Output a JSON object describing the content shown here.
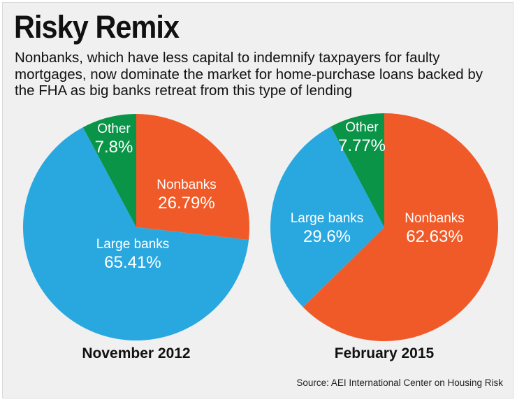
{
  "title": "Risky Remix",
  "subtitle": "Nonbanks, which have less capital to indemnify taxpayers for faulty mortgages, now dominate the market for home-purchase loans backed by the FHA as big banks retreat from this type of lending",
  "source": "Source: AEI International Center on Housing Risk",
  "colors": {
    "nonbanks": "#f05a28",
    "large_banks": "#29a8e0",
    "other": "#0a9447"
  },
  "chart_data": [
    {
      "type": "pie",
      "caption": "November 2012",
      "slices": [
        {
          "key": "nonbanks",
          "name": "Nonbanks",
          "value": 26.79,
          "label": "26.79%"
        },
        {
          "key": "large_banks",
          "name": "Large banks",
          "value": 65.41,
          "label": "65.41%"
        },
        {
          "key": "other",
          "name": "Other",
          "value": 7.8,
          "label": "7.8%"
        }
      ]
    },
    {
      "type": "pie",
      "caption": "February 2015",
      "slices": [
        {
          "key": "nonbanks",
          "name": "Nonbanks",
          "value": 62.63,
          "label": "62.63%"
        },
        {
          "key": "large_banks",
          "name": "Large banks",
          "value": 29.6,
          "label": "29.6%"
        },
        {
          "key": "other",
          "name": "Other",
          "value": 7.77,
          "label": "7.77%"
        }
      ]
    }
  ]
}
